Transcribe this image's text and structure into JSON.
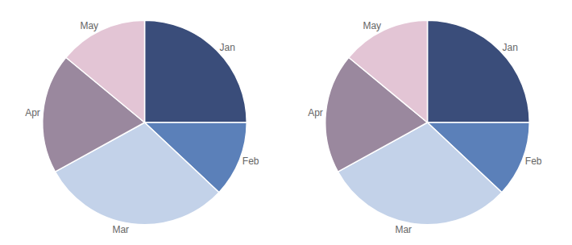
{
  "chart_data": [
    {
      "type": "pie",
      "categories": [
        "Jan",
        "Feb",
        "Mar",
        "Apr",
        "May"
      ],
      "values": [
        25,
        12,
        30,
        19,
        14
      ],
      "colors": [
        "#3a4d7a",
        "#5b80b9",
        "#c3d2e9",
        "#9a889e",
        "#e3c5d5"
      ]
    },
    {
      "type": "pie",
      "categories": [
        "Jan",
        "Feb",
        "Mar",
        "Apr",
        "May"
      ],
      "values": [
        25,
        12,
        30,
        19,
        14
      ],
      "colors": [
        "#3a4d7a",
        "#5b80b9",
        "#c3d2e9",
        "#9a889e",
        "#e3c5d5"
      ]
    }
  ]
}
